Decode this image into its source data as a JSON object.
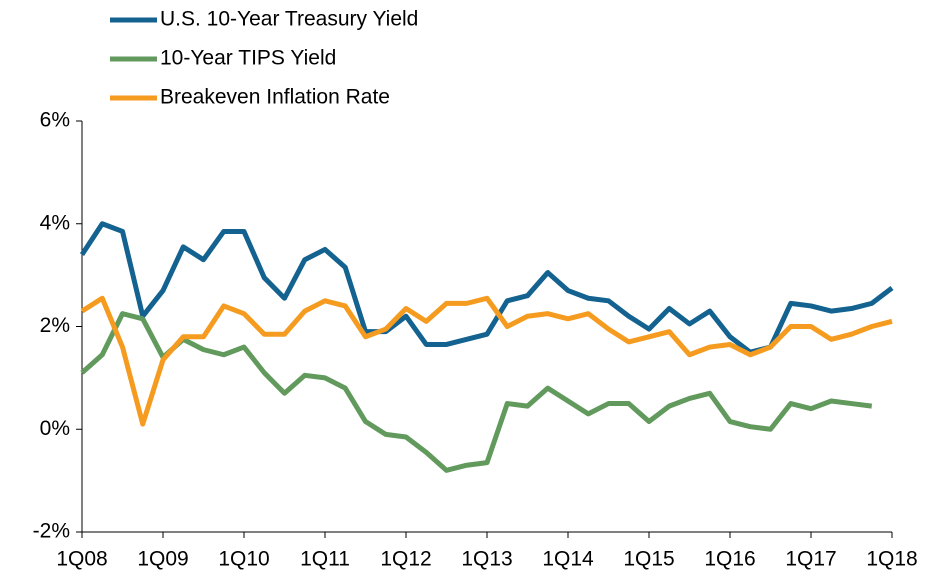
{
  "chart_data": {
    "type": "line",
    "categories": [
      "1Q08",
      null,
      null,
      null,
      "1Q09",
      null,
      null,
      null,
      "1Q10",
      null,
      null,
      null,
      "1Q11",
      null,
      null,
      null,
      "1Q12",
      null,
      null,
      null,
      "1Q13",
      null,
      null,
      null,
      "1Q14",
      null,
      null,
      null,
      "1Q15",
      null,
      null,
      null,
      "1Q16",
      null,
      null,
      null,
      "1Q17",
      null,
      null,
      null,
      "1Q18"
    ],
    "series": [
      {
        "name": "U.S. 10-Year Treasury Yield",
        "color": "#13628f",
        "values": [
          3.4,
          4.0,
          3.85,
          2.2,
          2.7,
          3.55,
          3.3,
          3.85,
          3.85,
          2.95,
          2.55,
          3.3,
          3.5,
          3.15,
          1.9,
          1.9,
          2.2,
          1.65,
          1.65,
          1.75,
          1.85,
          2.5,
          2.6,
          3.05,
          2.7,
          2.55,
          2.5,
          2.2,
          1.95,
          2.35,
          2.05,
          2.3,
          1.8,
          1.5,
          1.6,
          2.45,
          2.4,
          2.3,
          2.35,
          2.45,
          2.75
        ]
      },
      {
        "name": "10-Year TIPS Yield",
        "color": "#619a5c",
        "values": [
          1.1,
          1.45,
          2.25,
          2.15,
          1.4,
          1.75,
          1.55,
          1.45,
          1.6,
          1.1,
          0.7,
          1.05,
          1.0,
          0.8,
          0.15,
          -0.1,
          -0.15,
          -0.45,
          -0.8,
          -0.7,
          -0.65,
          0.5,
          0.45,
          0.8,
          0.55,
          0.3,
          0.5,
          0.5,
          0.15,
          0.45,
          0.6,
          0.7,
          0.15,
          0.05,
          0.0,
          0.5,
          0.4,
          0.55,
          0.5,
          0.45,
          null
        ]
      },
      {
        "name": "Breakeven Inflation Rate",
        "color": "#f59b1f",
        "values": [
          2.3,
          2.55,
          1.6,
          0.1,
          1.35,
          1.8,
          1.8,
          2.4,
          2.25,
          1.85,
          1.85,
          2.3,
          2.5,
          2.4,
          1.8,
          1.95,
          2.35,
          2.1,
          2.45,
          2.45,
          2.55,
          2.0,
          2.2,
          2.25,
          2.15,
          2.25,
          1.95,
          1.7,
          1.8,
          1.9,
          1.45,
          1.6,
          1.65,
          1.45,
          1.6,
          2.0,
          2.0,
          1.75,
          1.85,
          2.0,
          2.1
        ]
      }
    ],
    "ylim": [
      -2,
      6
    ],
    "yticks": [
      {
        "value": -2,
        "label": "-2%"
      },
      {
        "value": 0,
        "label": "0%"
      },
      {
        "value": 2,
        "label": "2%"
      },
      {
        "value": 4,
        "label": "4%"
      },
      {
        "value": 6,
        "label": "6%"
      }
    ],
    "grid": false,
    "legend": "top-left"
  }
}
